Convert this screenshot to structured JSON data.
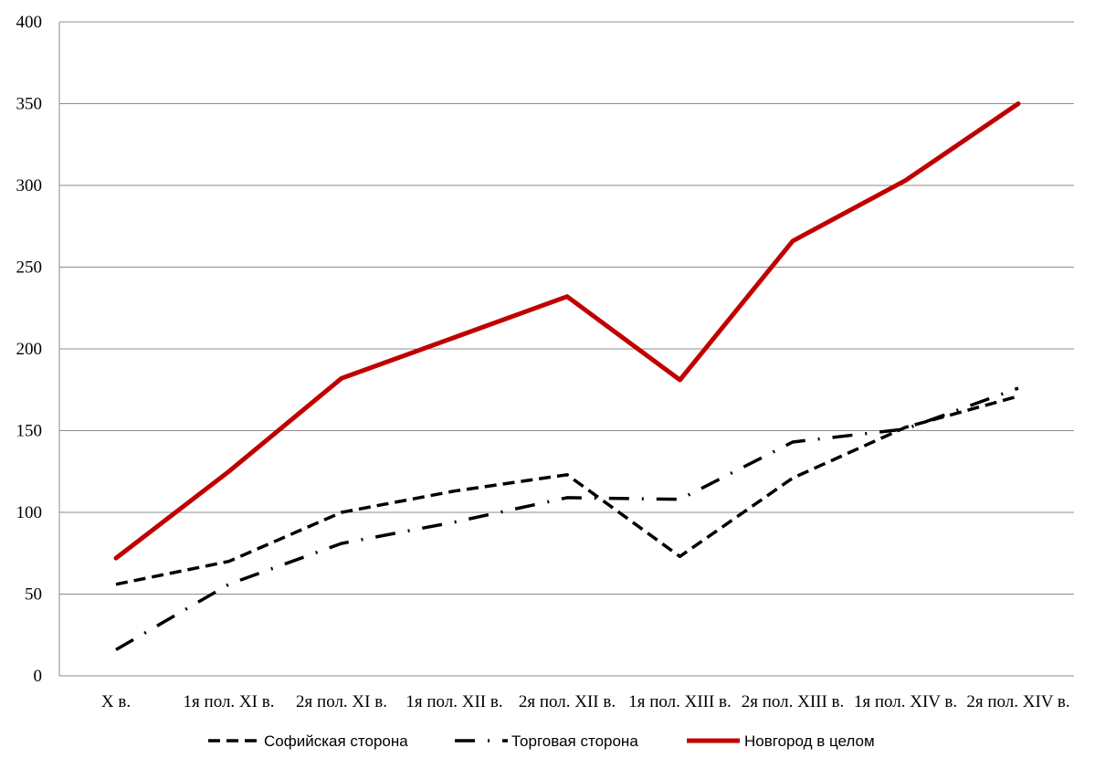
{
  "chart_data": {
    "type": "line",
    "categories": [
      "X в.",
      "1я пол. XI в.",
      "2я пол. XI в.",
      "1я пол. XII в.",
      "2я пол. XII в.",
      "1я пол. XIII в.",
      "2я пол. XIII в.",
      "1я пол. XIV в.",
      "2я пол. XIV в."
    ],
    "series": [
      {
        "name": "Софийская сторона",
        "values": [
          56,
          70,
          100,
          113,
          123,
          73,
          121,
          152,
          171
        ],
        "color": "#000000",
        "style": "dashed"
      },
      {
        "name": "Торговая сторона",
        "values": [
          16,
          56,
          81,
          94,
          109,
          108,
          143,
          151,
          176
        ],
        "color": "#000000",
        "style": "dash-dot"
      },
      {
        "name": "Новгород в целом",
        "values": [
          72,
          125,
          182,
          207,
          232,
          181,
          266,
          303,
          350
        ],
        "color": "#c00000",
        "style": "solid"
      }
    ],
    "yticks": [
      0,
      50,
      100,
      150,
      200,
      250,
      300,
      350,
      400
    ],
    "ylim": [
      0,
      400
    ],
    "grid": true,
    "legend": "bottom"
  }
}
